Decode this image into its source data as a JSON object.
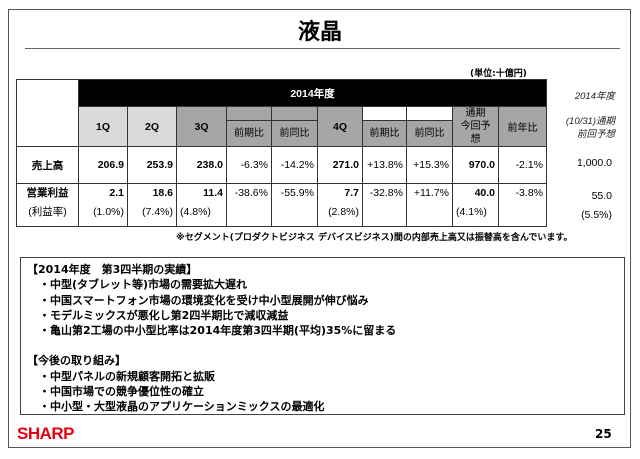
{
  "title": "液晶",
  "unit": "(単位:十億円)",
  "table": {
    "year_header": "2014年度",
    "cols": {
      "q1": "1Q",
      "q2": "2Q",
      "q3": "3Q",
      "qoq": "前期比",
      "yoy": "前同比",
      "q4": "4Q",
      "q4_qoq": "前期比",
      "q4_yoy": "前同比",
      "full_line1": "通期",
      "full_line2": "今回予想",
      "fy_yoy": "前年比"
    },
    "rows": [
      {
        "label": "売上高",
        "q1": "206.9",
        "q2": "253.9",
        "q3": "238.0",
        "qoq": "-6.3%",
        "yoy": "-14.2%",
        "q4": "271.0",
        "q4_qoq": "+13.8%",
        "q4_yoy": "+15.3%",
        "full": "970.0",
        "fy_yoy": "-2.1%"
      },
      {
        "label": "営業利益",
        "sublabel": "(利益率)",
        "q1": "2.1",
        "q1m": "(1.0%)",
        "q2": "18.6",
        "q2m": "(7.4%)",
        "q3": "11.4",
        "q3m": "(4.8%)",
        "qoq": "-38.6%",
        "yoy": "-55.9%",
        "q4": "7.7",
        "q4m": "(2.8%)",
        "q4_qoq": "-32.8%",
        "q4_yoy": "+11.7%",
        "full": "40.0",
        "fullm": "(4.1%)",
        "fy_yoy": "-3.8%"
      }
    ]
  },
  "side": {
    "line1": "2014年度",
    "line2": "(10/31)通期",
    "line3": "前回予想",
    "sales": "1,000.0",
    "op": "55.0",
    "margin": "(5.5%)"
  },
  "note": "※セグメント(プロダクトビジネス デバイスビジネス)間の内部売上高又は振替高を含んでいます。",
  "results": {
    "heading": "【2014年度　第3四半期の実績】",
    "items": [
      "・中型(タブレット等)市場の需要拡大遅れ",
      "・中国スマートフォン市場の環境変化を受け中小型展開が伸び悩み",
      "・モデルミックスが悪化し第2四半期比で減収減益",
      "・亀山第2工場の中小型比率は2014年度第3四半期(平均)35%に留まる"
    ]
  },
  "plans": {
    "heading": "【今後の取り組み】",
    "items": [
      "・中型パネルの新規顧客開拓と拡販",
      "・中国市場での競争優位性の確立",
      "・中小型・大型液晶のアプリケーションミックスの最適化"
    ]
  },
  "logo": "SHARP",
  "page": "25"
}
